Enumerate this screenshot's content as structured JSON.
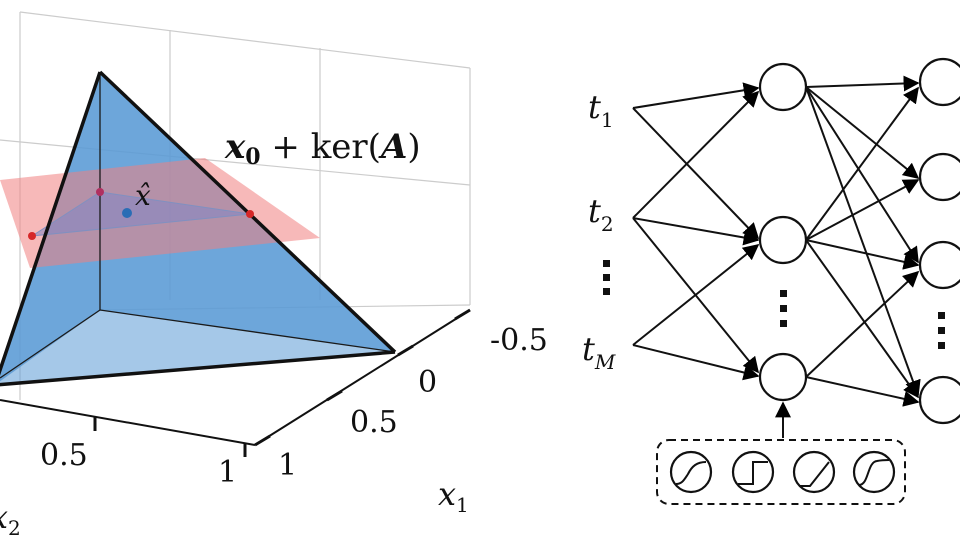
{
  "left_panel": {
    "plane_label": {
      "x0": "x",
      "x0_sub": "0",
      "plus": " + ker(",
      "A": "A",
      "close": ")"
    },
    "point_label": "x̂",
    "x1_ticks": [
      "-0.5",
      "0",
      "0.5",
      "1"
    ],
    "x2_ticks": [
      "0.5",
      "1"
    ],
    "x1_axis_label": "x",
    "x1_axis_sub": "1",
    "x2_axis_label": "x",
    "x2_axis_sub": "2",
    "colors": {
      "simplex": "#5b9bd5",
      "plane": "#f08080",
      "grid": "#c8c8c8",
      "edge": "#111111"
    }
  },
  "right_panel": {
    "inputs": [
      {
        "base": "t",
        "sub": "1"
      },
      {
        "base": "t",
        "sub": "2"
      },
      {
        "base": "t",
        "sub": "M"
      }
    ],
    "activation_icons": [
      "sigmoid-shape-icon",
      "step-shape-icon",
      "ramp-shape-icon",
      "smooth-step-shape-icon"
    ]
  }
}
